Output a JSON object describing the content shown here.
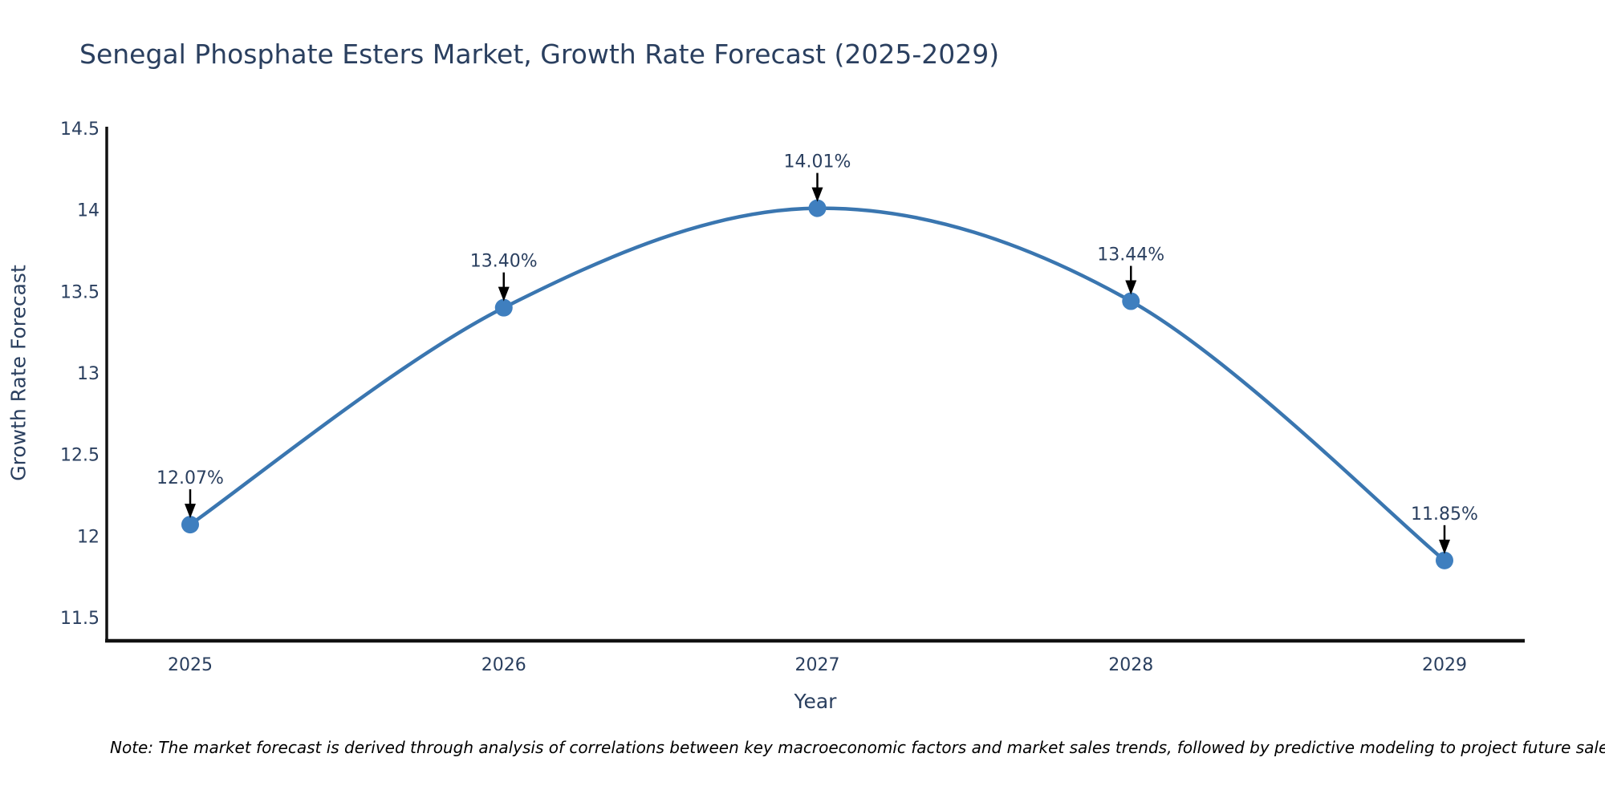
{
  "title": "Senegal Phosphate Esters Market, Growth Rate Forecast (2025-2029)",
  "chart_data": {
    "type": "line",
    "title": "Senegal Phosphate Esters Market, Growth Rate Forecast (2025-2029)",
    "x": [
      "2025",
      "2026",
      "2027",
      "2028",
      "2029"
    ],
    "series": [
      {
        "name": "Growth Rate Forecast",
        "values": [
          12.07,
          13.4,
          14.01,
          13.44,
          11.85
        ]
      }
    ],
    "point_labels": [
      "12.07%",
      "13.40%",
      "14.01%",
      "13.44%",
      "11.85%"
    ],
    "xlabel": "Year",
    "ylabel": "Growth Rate Forecast",
    "yticks": [
      "14.5",
      "14",
      "13.5",
      "13",
      "12.5",
      "12",
      "11.5"
    ],
    "ytick_values": [
      14.5,
      14,
      13.5,
      13,
      12.5,
      12,
      11.5
    ],
    "ylim": [
      11.35,
      14.55
    ],
    "grid": false,
    "legend_position": "none",
    "line_shape": "spline",
    "colors": {
      "line": "#3a76b0",
      "marker": "#3f7fbf",
      "arrow": "#000000",
      "text": "#2a3f5f",
      "axis": "#111111"
    }
  },
  "note": "Note: The market forecast is derived through analysis of correlations between key macroeconomic factors and market sales trends, followed by predictive modeling to project future sales"
}
